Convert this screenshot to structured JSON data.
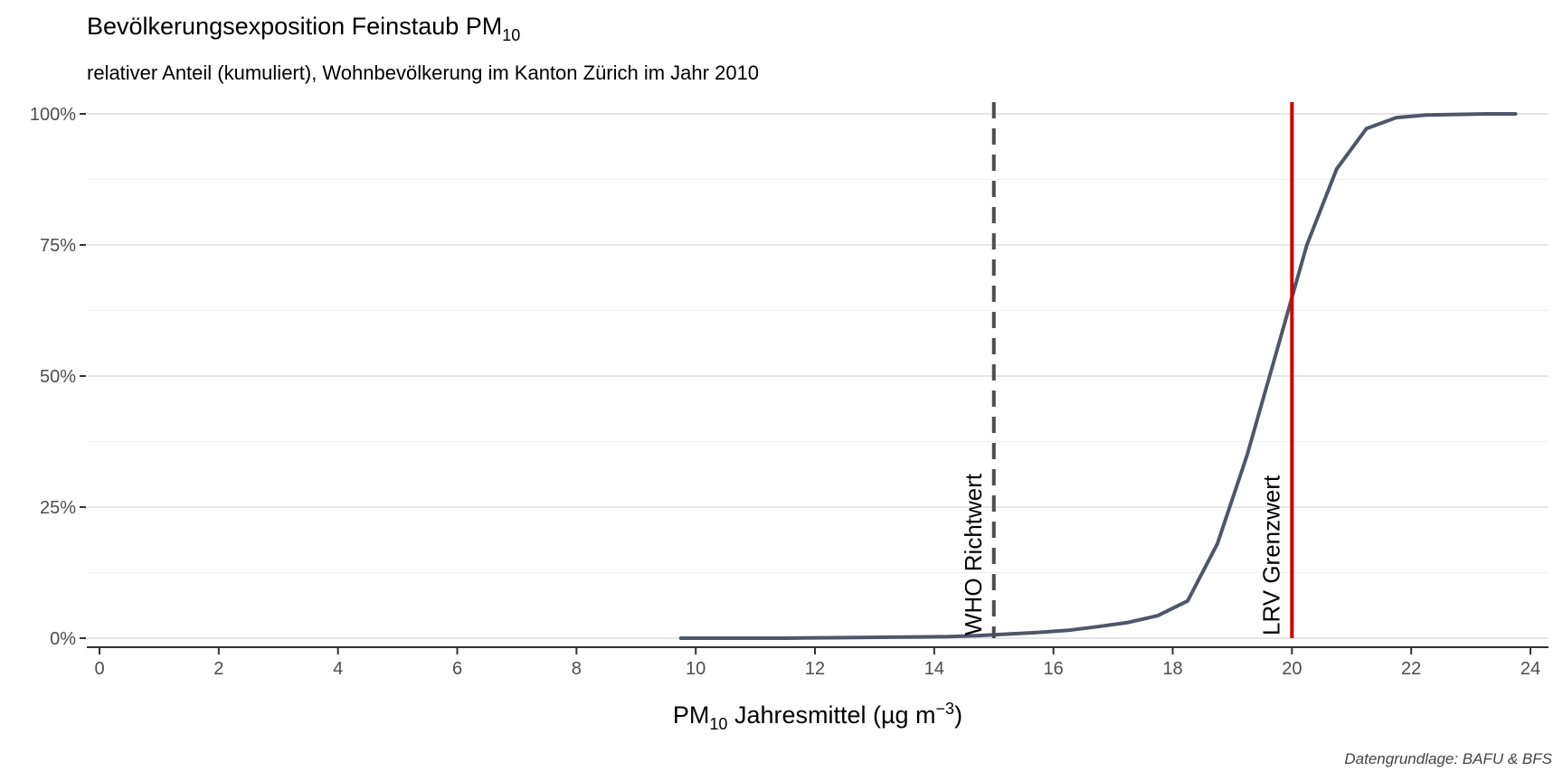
{
  "chart_data": {
    "type": "line",
    "title": "Bevölkerungsexposition Feinstaub PM",
    "title_subscript": "10",
    "subtitle": "relativer Anteil (kumuliert), Wohnbevölkerung im Kanton Zürich im Jahr 2010",
    "xlabel_prefix": "PM",
    "xlabel_subscript": "10",
    "xlabel_main": " Jahresmittel (µg m",
    "xlabel_superscript": "−3",
    "xlabel_suffix": ")",
    "caption": "Datengrundlage: BAFU & BFS",
    "xlim": [
      0,
      24
    ],
    "ylim": [
      0,
      1
    ],
    "x_ticks": [
      0,
      2,
      4,
      6,
      8,
      10,
      12,
      14,
      16,
      18,
      20,
      22,
      24
    ],
    "y_ticks": [
      0,
      0.25,
      0.5,
      0.75,
      1.0
    ],
    "y_tick_labels": [
      "0%",
      "25%",
      "50%",
      "75%",
      "100%"
    ],
    "grid": true,
    "series": [
      {
        "color": "#4f5668",
        "x": [
          9.75,
          10.5,
          11.5,
          12.5,
          13.5,
          14.25,
          14.75,
          15.25,
          15.75,
          16.25,
          16.75,
          17.25,
          17.75,
          18.25,
          18.75,
          19.25,
          19.75,
          20.25,
          20.75,
          21.25,
          21.75,
          22.25,
          22.75,
          23.25,
          23.75
        ],
        "y": [
          0.0,
          0.0,
          0.0,
          0.001,
          0.002,
          0.003,
          0.005,
          0.008,
          0.011,
          0.015,
          0.022,
          0.03,
          0.043,
          0.071,
          0.18,
          0.35,
          0.55,
          0.75,
          0.895,
          0.972,
          0.993,
          0.998,
          0.999,
          1.0,
          1.0
        ]
      }
    ],
    "reference_lines": [
      {
        "x": 15,
        "label": "WHO Richtwert",
        "color": "#4d4d4d",
        "style": "dashed"
      },
      {
        "x": 20,
        "label": "LRV Grenzwert",
        "color": "#cc0000",
        "style": "solid"
      }
    ]
  }
}
